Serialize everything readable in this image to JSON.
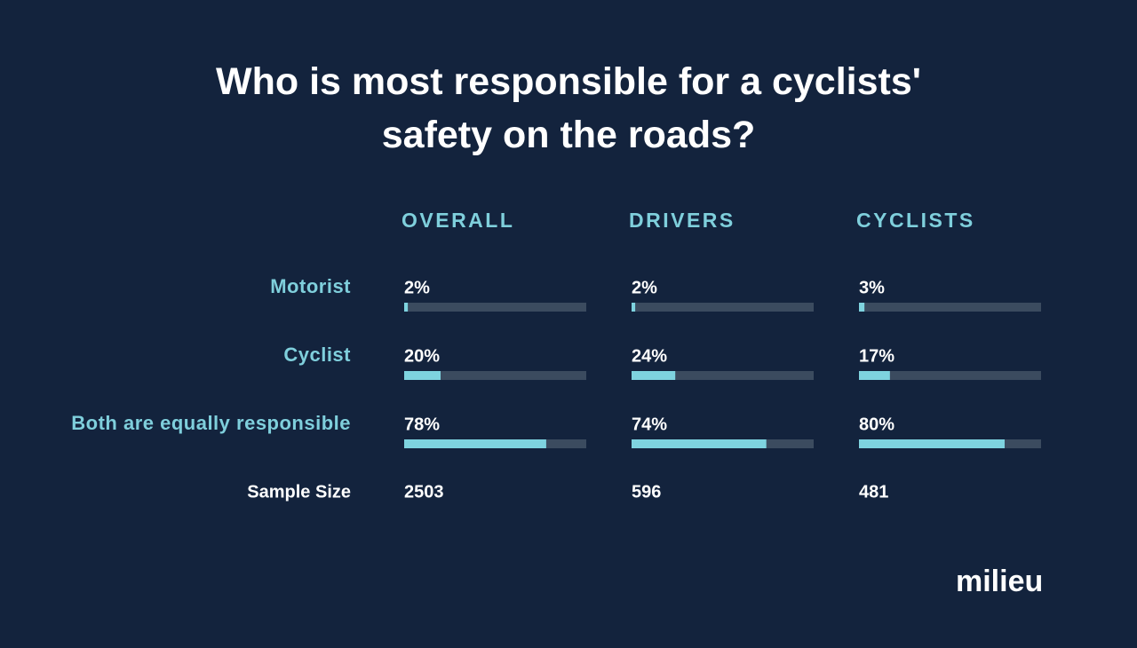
{
  "chart_data": {
    "type": "bar",
    "title": "Who is most responsible for a cyclists' safety on the roads?",
    "categories": [
      "Motorist",
      "Cyclist",
      "Both are equally responsible"
    ],
    "series": [
      {
        "name": "OVERALL",
        "color": "#7ed3df",
        "values": [
          2,
          20,
          78
        ],
        "value_labels": [
          "2%",
          "20%",
          "78%"
        ],
        "sample_size": 2503
      },
      {
        "name": "DRIVERS",
        "color": "#7ed3df",
        "values": [
          2,
          24,
          74
        ],
        "value_labels": [
          "2%",
          "24%",
          "74%"
        ],
        "sample_size": 596
      },
      {
        "name": "CYCLISTS",
        "color": "#7ed3df",
        "values": [
          3,
          17,
          80
        ],
        "value_labels": [
          "3%",
          "17%",
          "80%"
        ],
        "sample_size": 481
      }
    ],
    "sample_size_label": "Sample Size",
    "xlim": [
      0,
      100
    ],
    "track_color": "#3b4b5f"
  },
  "logo": "milieu"
}
